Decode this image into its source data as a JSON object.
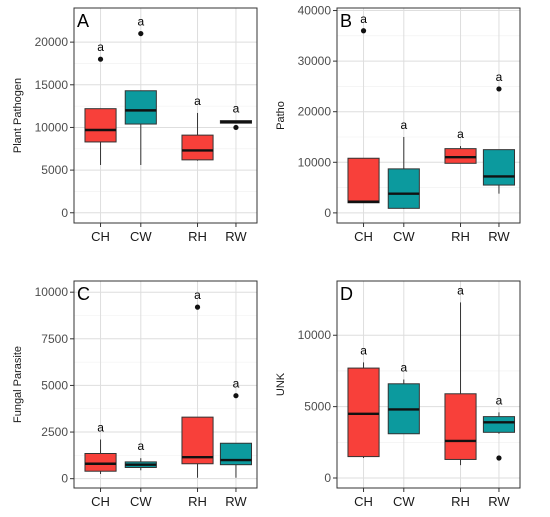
{
  "colors": {
    "CH": "#f8403a",
    "CW": "#0c9a9e",
    "RH": "#f8403a",
    "RW": "#0c9a9e",
    "grid": "#dedede",
    "panel_border": "#333333"
  },
  "chart_data": [
    {
      "type": "box",
      "panel_letter": "A",
      "ylabel": "Plant Pathogen",
      "ylim": [
        -1200,
        24000
      ],
      "yticks": [
        0,
        5000,
        10000,
        15000,
        20000
      ],
      "ytick_labels": [
        "0",
        "5000",
        "10000",
        "15000",
        "20000"
      ],
      "categories": [
        "CH",
        "CW",
        "RH",
        "RW"
      ],
      "boxes": [
        {
          "label": "CH",
          "whisker_low": 5600,
          "q1": 8300,
          "median": 9700,
          "q3": 12200,
          "whisker_high": 12200,
          "outliers": [
            18000
          ],
          "annotation": "a"
        },
        {
          "label": "CW",
          "whisker_low": 5600,
          "q1": 10400,
          "median": 12000,
          "q3": 14300,
          "whisker_high": 14300,
          "outliers": [
            21000
          ],
          "annotation": "a"
        },
        {
          "label": "RH",
          "whisker_low": 6100,
          "q1": 6200,
          "median": 7300,
          "q3": 9100,
          "whisker_high": 11700,
          "outliers": [],
          "annotation": "a"
        },
        {
          "label": "RW",
          "whisker_low": 10500,
          "q1": 10500,
          "median": 10650,
          "q3": 10800,
          "whisker_high": 10800,
          "outliers": [
            10000
          ],
          "annotation": "a"
        }
      ]
    },
    {
      "type": "box",
      "panel_letter": "B",
      "ylabel": "Patho",
      "ylim": [
        -2000,
        40500
      ],
      "yticks": [
        0,
        10000,
        20000,
        30000,
        40000
      ],
      "ytick_labels": [
        "0",
        "10000",
        "20000",
        "30000",
        "40000"
      ],
      "categories": [
        "CH",
        "CW",
        "RH",
        "RW"
      ],
      "boxes": [
        {
          "label": "CH",
          "whisker_low": 2000,
          "q1": 2000,
          "median": 2200,
          "q3": 10800,
          "whisker_high": 10800,
          "outliers": [
            36000
          ],
          "annotation": "a"
        },
        {
          "label": "CW",
          "whisker_low": 800,
          "q1": 900,
          "median": 3800,
          "q3": 8700,
          "whisker_high": 15000,
          "outliers": [],
          "annotation": "a"
        },
        {
          "label": "RH",
          "whisker_low": 9800,
          "q1": 9800,
          "median": 11000,
          "q3": 12700,
          "whisker_high": 13200,
          "outliers": [],
          "annotation": "a"
        },
        {
          "label": "RW",
          "whisker_low": 3800,
          "q1": 5500,
          "median": 7200,
          "q3": 12500,
          "whisker_high": 12500,
          "outliers": [
            24500
          ],
          "annotation": "a"
        }
      ]
    },
    {
      "type": "box",
      "panel_letter": "C",
      "ylabel": "Fungal Parasite",
      "ylim": [
        -500,
        10600
      ],
      "yticks": [
        0,
        2500,
        5000,
        7500,
        10000
      ],
      "ytick_labels": [
        "0",
        "2500",
        "5000",
        "7500",
        "10000"
      ],
      "categories": [
        "CH",
        "CW",
        "RH",
        "RW"
      ],
      "boxes": [
        {
          "label": "CH",
          "whisker_low": 250,
          "q1": 400,
          "median": 800,
          "q3": 1350,
          "whisker_high": 2100,
          "outliers": [],
          "annotation": "a"
        },
        {
          "label": "CW",
          "whisker_low": 450,
          "q1": 600,
          "median": 750,
          "q3": 900,
          "whisker_high": 1100,
          "outliers": [],
          "annotation": "a"
        },
        {
          "label": "RH",
          "whisker_low": 50,
          "q1": 800,
          "median": 1150,
          "q3": 3300,
          "whisker_high": 3300,
          "outliers": [
            9200
          ],
          "annotation": "a"
        },
        {
          "label": "RW",
          "whisker_low": 50,
          "q1": 750,
          "median": 1000,
          "q3": 1900,
          "whisker_high": 1900,
          "outliers": [
            4450
          ],
          "annotation": "a"
        }
      ]
    },
    {
      "type": "box",
      "panel_letter": "D",
      "ylabel": "UNK",
      "ylim": [
        -700,
        13800
      ],
      "yticks": [
        0,
        5000,
        10000
      ],
      "ytick_labels": [
        "0",
        "5000",
        "10000"
      ],
      "categories": [
        "CH",
        "CW",
        "RH",
        "RW"
      ],
      "boxes": [
        {
          "label": "CH",
          "whisker_low": 1400,
          "q1": 1500,
          "median": 4500,
          "q3": 7700,
          "whisker_high": 8100,
          "outliers": [],
          "annotation": "a"
        },
        {
          "label": "CW",
          "whisker_low": 3100,
          "q1": 3100,
          "median": 4800,
          "q3": 6600,
          "whisker_high": 6900,
          "outliers": [],
          "annotation": "a"
        },
        {
          "label": "RH",
          "whisker_low": 900,
          "q1": 1300,
          "median": 2600,
          "q3": 5900,
          "whisker_high": 12300,
          "outliers": [],
          "annotation": "a"
        },
        {
          "label": "RW",
          "whisker_low": 3100,
          "q1": 3200,
          "median": 3900,
          "q3": 4300,
          "whisker_high": 4600,
          "outliers": [
            1400
          ],
          "annotation": "a"
        }
      ]
    }
  ]
}
